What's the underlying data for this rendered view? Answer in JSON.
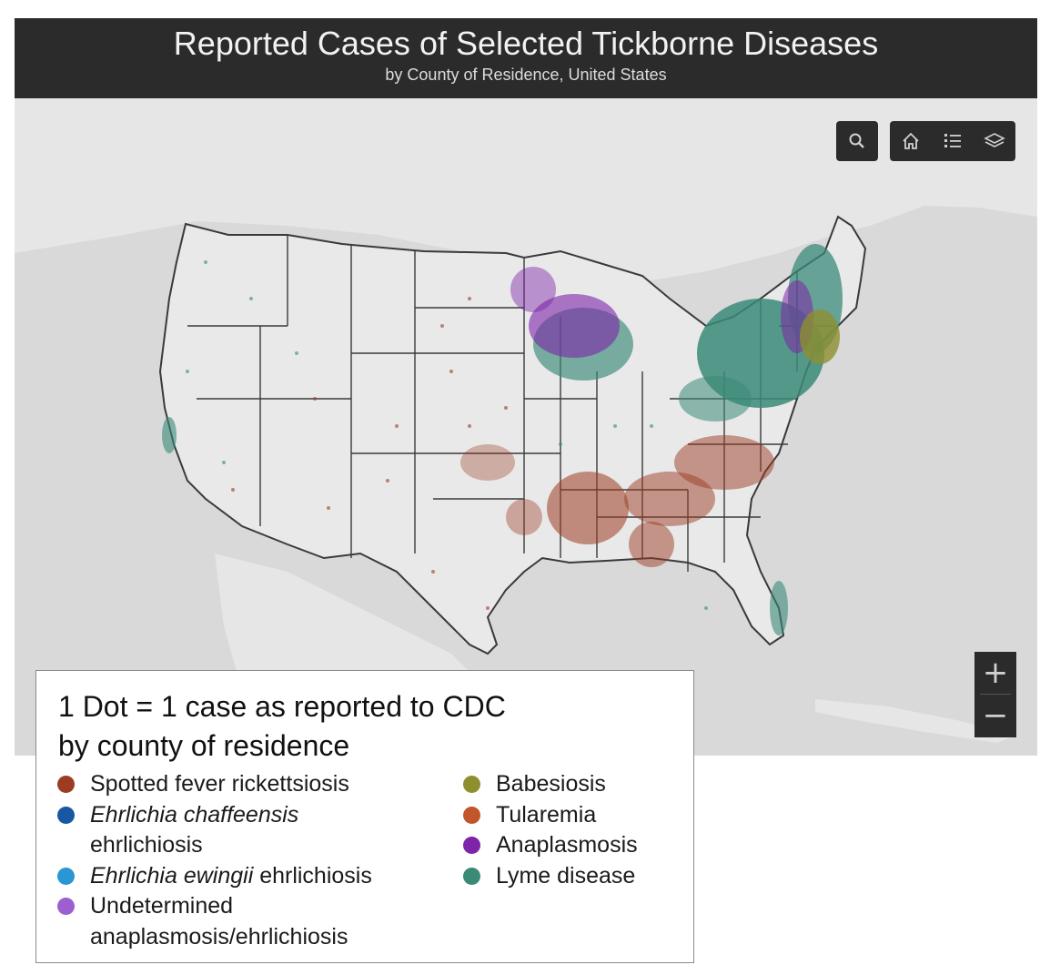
{
  "title_bar": {
    "title": "Reported Cases of Selected Tickborne Diseases",
    "subtitle": "by County of Residence, United States"
  },
  "toolbar": {
    "search_icon": "search-icon",
    "home_icon": "home-icon",
    "legend_icon": "list-icon",
    "layers_icon": "layers-icon"
  },
  "zoom": {
    "in_label": "+",
    "out_label": "−"
  },
  "legend": {
    "header_line1": "1 Dot = 1 case as reported to CDC",
    "header_line2": "by county of residence",
    "items": [
      {
        "line1_italic": "",
        "line1_rest": "Spotted fever rickettsiosis",
        "line2": "",
        "color": "#9c3d23"
      },
      {
        "line1_italic": "Ehrlichia chaffeensis",
        "line1_rest": "",
        "line2": "ehrlichiosis",
        "color": "#1a57a3"
      },
      {
        "line1_italic": "Ehrlichia ewingii",
        "line1_rest": " ehrlichiosis",
        "line2": "",
        "color": "#2a97d4"
      },
      {
        "line1_italic": "",
        "line1_rest": "Undetermined",
        "line2": "anaplasmosis/ehrlichiosis",
        "color": "#9b5fcf"
      },
      {
        "line1_italic": "",
        "line1_rest": "Babesiosis",
        "line2": "",
        "color": "#8f8f30"
      },
      {
        "line1_italic": "",
        "line1_rest": "Tularemia",
        "line2": "",
        "color": "#c0562a"
      },
      {
        "line1_italic": "",
        "line1_rest": "Anaplasmosis",
        "line2": "",
        "color": "#7d24a8"
      },
      {
        "line1_italic": "",
        "line1_rest": "Lyme disease",
        "line2": "",
        "color": "#3a8a78"
      }
    ]
  },
  "colors": {
    "background": "#d9d9d9",
    "land": "#e9e9e9",
    "title_bar": "#2b2b2b",
    "spotted_fever": "#9c3d23",
    "lyme": "#3a8a78",
    "anaplasmosis": "#7d24a8",
    "babesiosis": "#8f8f30"
  }
}
